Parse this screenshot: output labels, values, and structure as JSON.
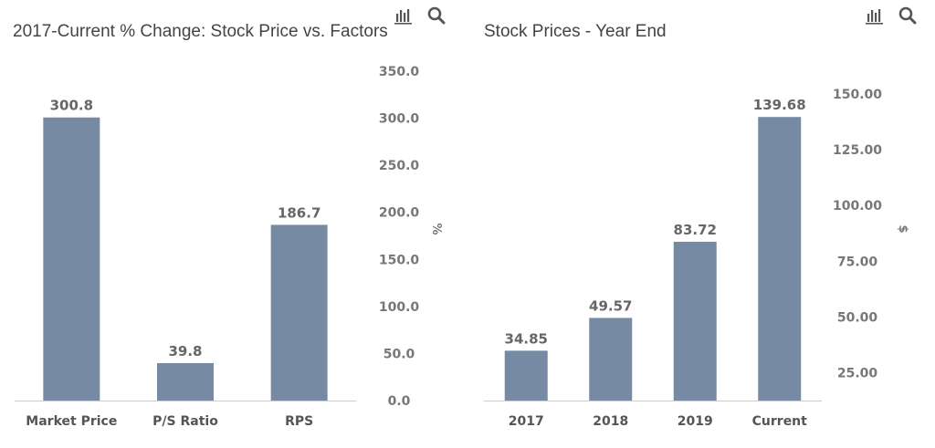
{
  "colors": {
    "bar": "#778aa4",
    "axis": "#cccccc",
    "icon": "#555555"
  },
  "icons": [
    "bar-chart-icon",
    "search-icon"
  ],
  "chart_data": [
    {
      "type": "bar",
      "title": "2017-Current % Change: Stock Price vs. Factors",
      "categories": [
        "Market Price",
        "P/S Ratio",
        "RPS"
      ],
      "values": [
        300.8,
        39.8,
        186.7
      ],
      "value_labels": [
        "300.8",
        "39.8",
        "186.7"
      ],
      "ylabel": "%",
      "ylim": [
        0,
        350
      ],
      "yticks": [
        0,
        50,
        100,
        150,
        200,
        250,
        300,
        350
      ],
      "ytick_labels": [
        "0.0",
        "50.0",
        "100.0",
        "150.0",
        "200.0",
        "250.0",
        "300.0",
        "350.0"
      ],
      "yaxis_position": "right"
    },
    {
      "type": "bar",
      "title": "Stock Prices - Year End",
      "categories": [
        "2017",
        "2018",
        "2019",
        "Current"
      ],
      "values": [
        34.85,
        49.57,
        83.72,
        139.68
      ],
      "value_labels": [
        "34.85",
        "49.57",
        "83.72",
        "139.68"
      ],
      "ylabel": "$",
      "ylim": [
        12.5,
        150
      ],
      "yticks": [
        25,
        50,
        75,
        100,
        125,
        150
      ],
      "ytick_labels": [
        "25.00",
        "50.00",
        "75.00",
        "100.00",
        "125.00",
        "150.00"
      ],
      "yaxis_position": "right"
    }
  ]
}
